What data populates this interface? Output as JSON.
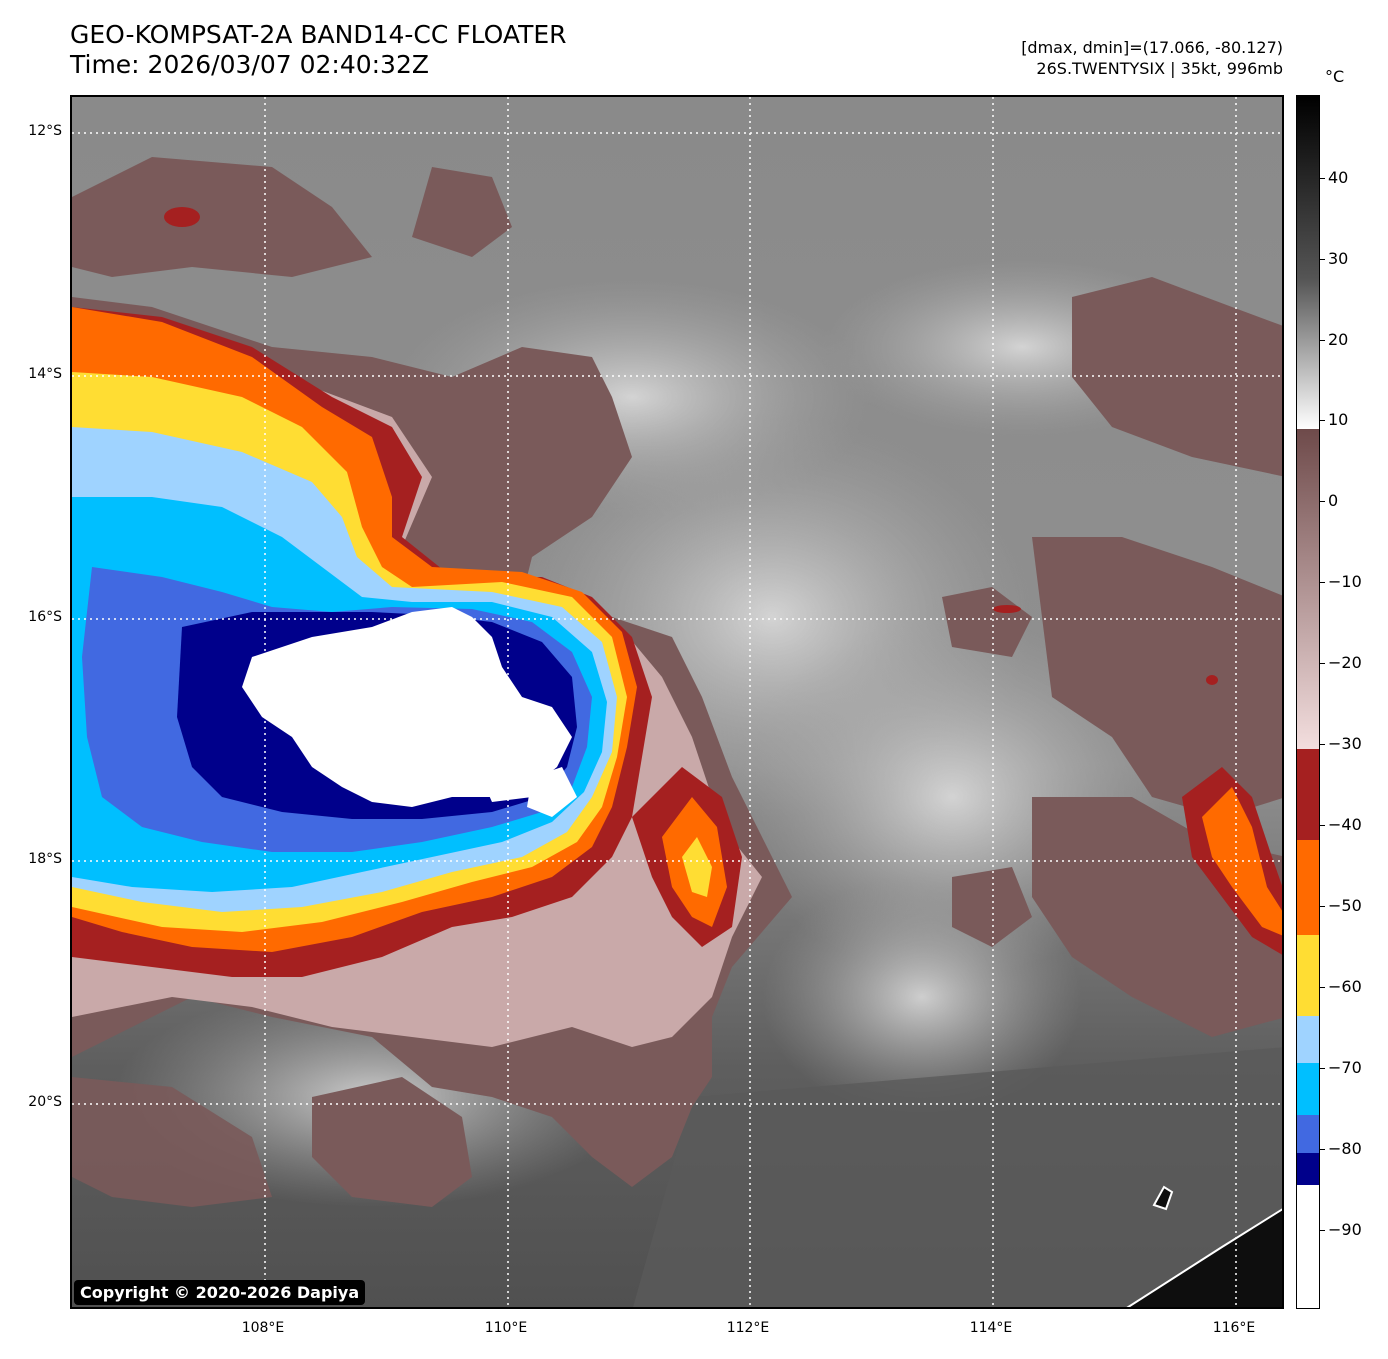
{
  "header": {
    "title_line1": "GEO-KOMPSAT-2A BAND14-CC FLOATER",
    "title_line2": "Time: 2026/03/07 02:40:32Z",
    "info_line1": "[dmax, dmin]=(17.066, -80.127)",
    "info_line2": "26S.TWENTYSIX | 35kt, 996mb"
  },
  "colorbar": {
    "unit": "°C",
    "ticks": [
      "40",
      "30",
      "20",
      "10",
      "0",
      "−10",
      "−20",
      "−30",
      "−40",
      "−50",
      "−60",
      "−70",
      "−80",
      "−90"
    ]
  },
  "axes": {
    "lat_labels": [
      "12°S",
      "14°S",
      "16°S",
      "18°S",
      "20°S"
    ],
    "lon_labels": [
      "108°E",
      "110°E",
      "112°E",
      "114°E",
      "116°E"
    ]
  },
  "copyright": "Copyright © 2020-2026 Dapiya",
  "colors": {
    "deep_white": "#ffffff",
    "navy": "#00008b",
    "royal_blue": "#4169e1",
    "deep_sky": "#00bfff",
    "light_sky": "#9fd3ff",
    "gold": "#ffdd33",
    "orange": "#ff6a00",
    "dark_red": "#a52020",
    "brown": "#7a5a5a"
  }
}
